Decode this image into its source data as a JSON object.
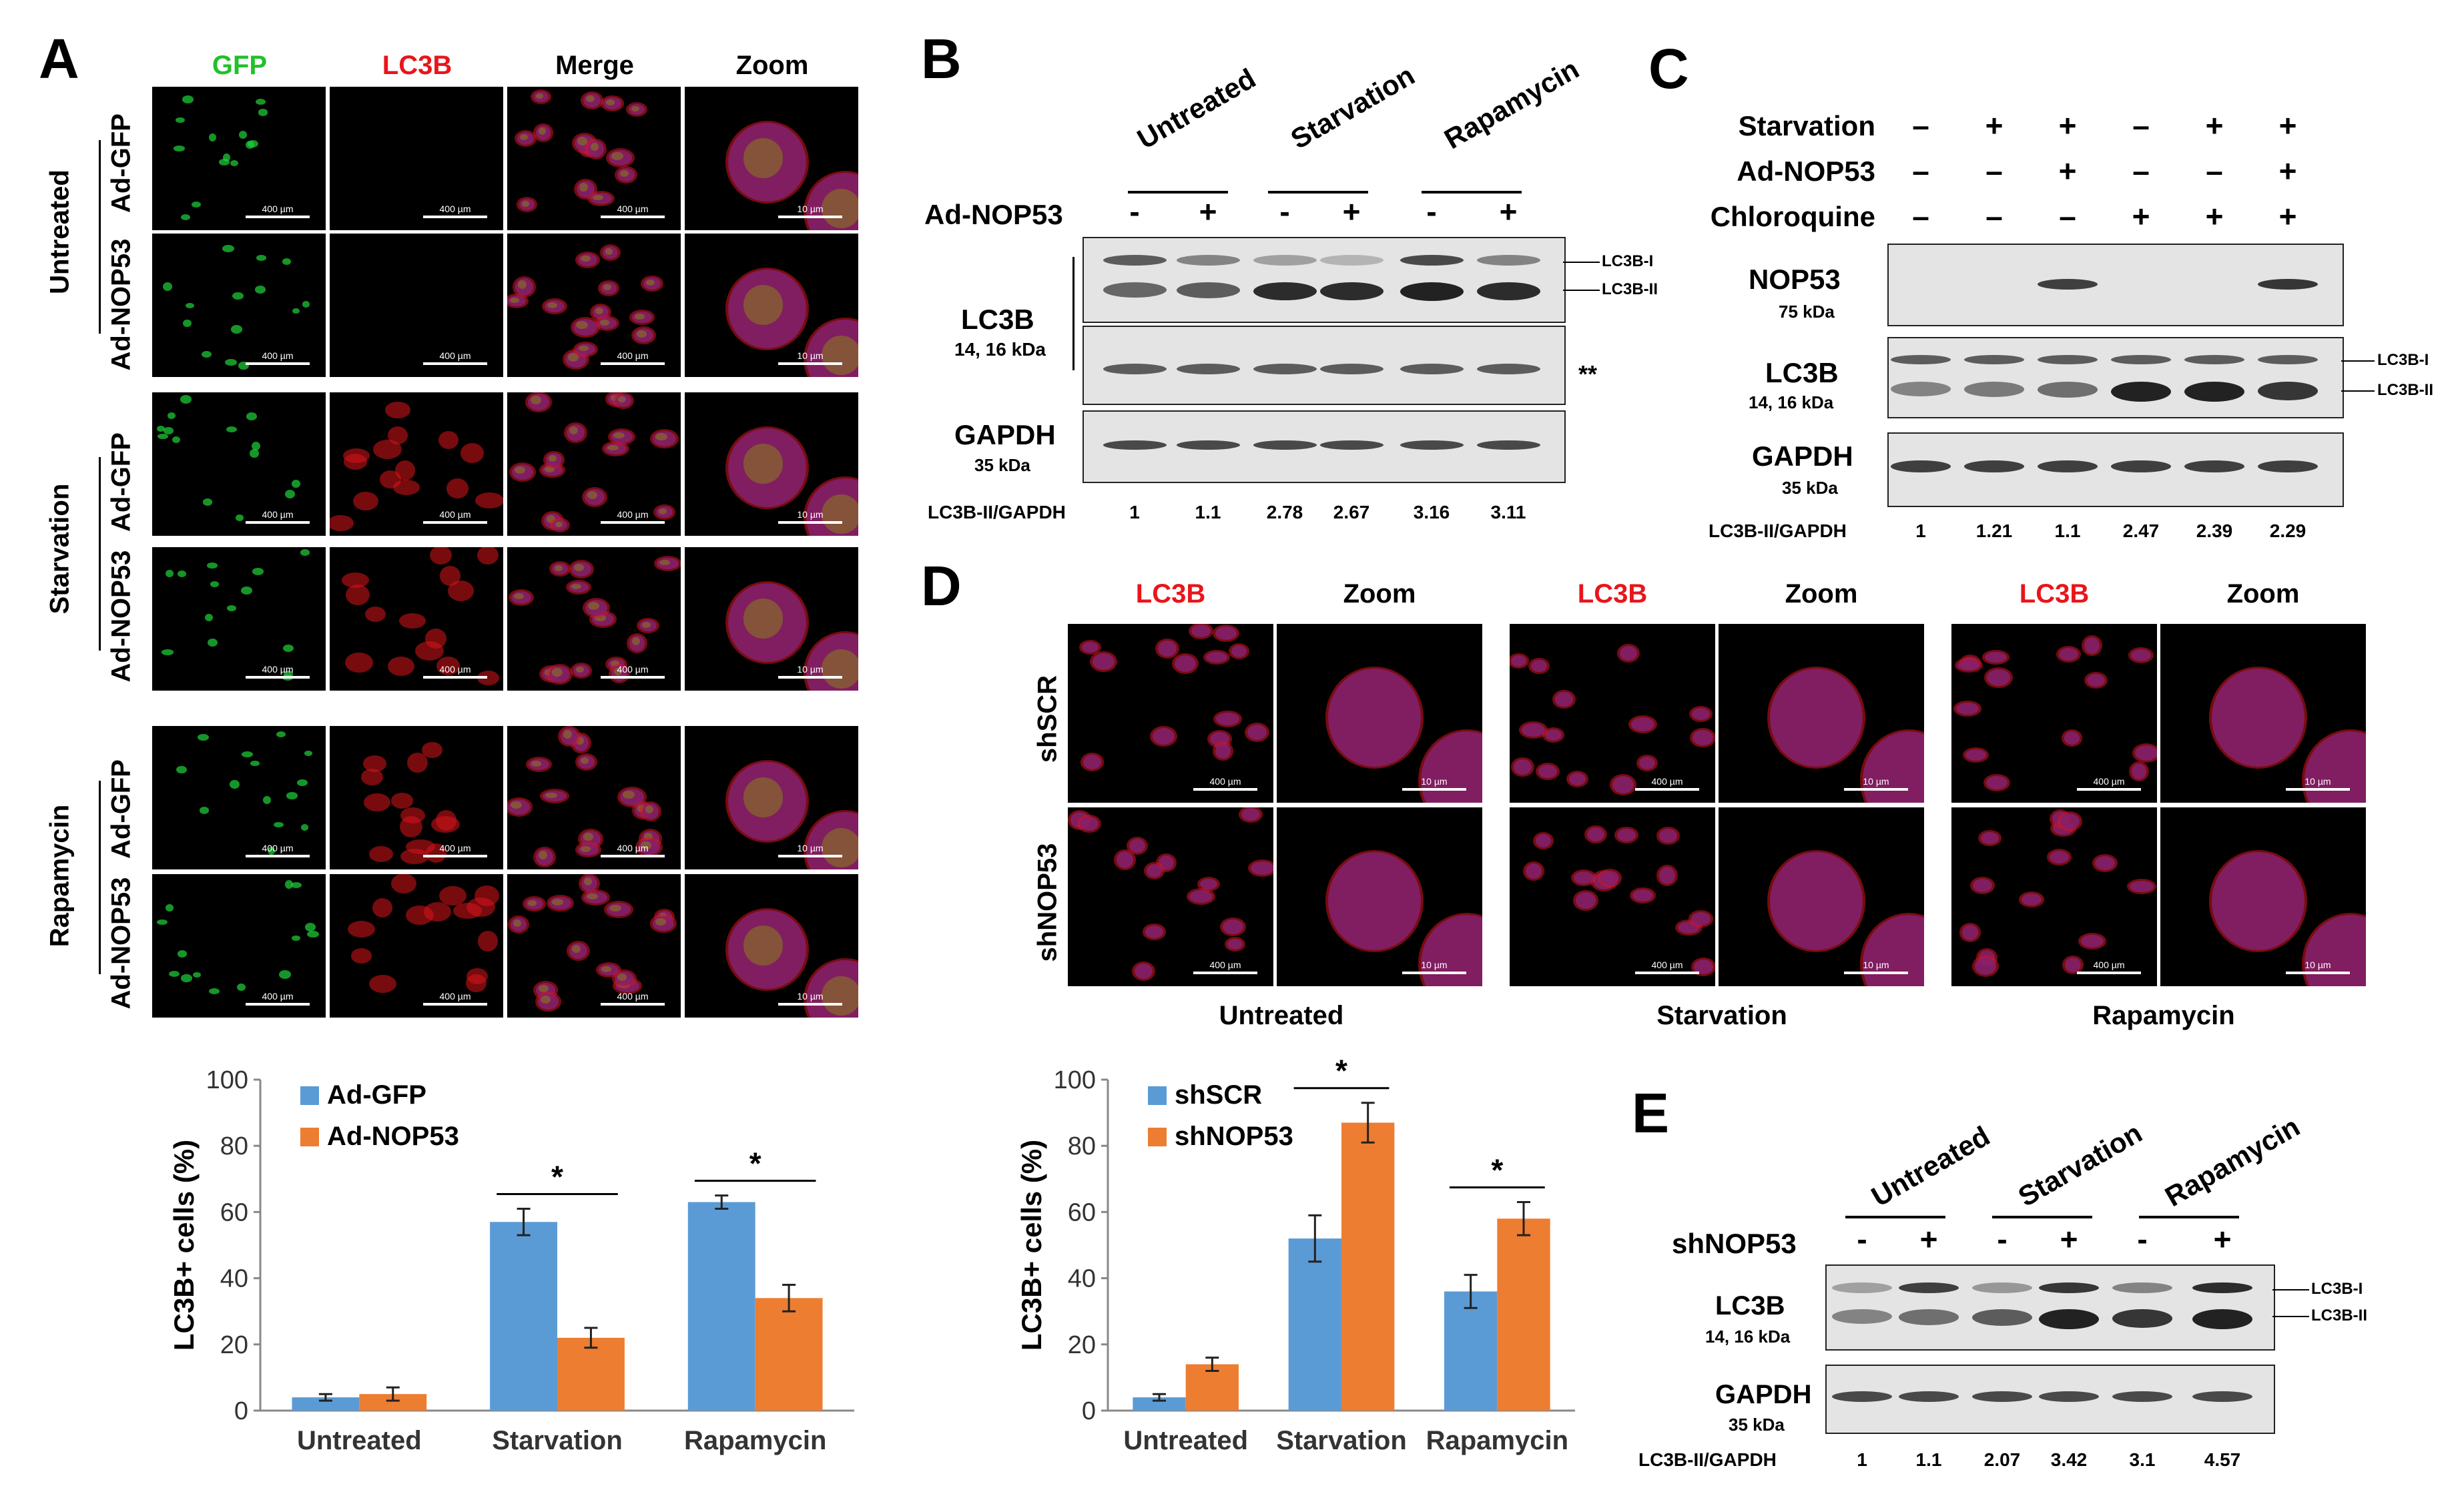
{
  "panel_letters": {
    "A": "A",
    "B": "B",
    "C": "C",
    "D": "D",
    "E": "E"
  },
  "panelA": {
    "columns": [
      "GFP",
      "LC3B",
      "Merge",
      "Zoom"
    ],
    "column_colors": [
      "#22c02a",
      "#e8151b",
      "#000000",
      "#000000"
    ],
    "groups": [
      "Untreated",
      "Starvation",
      "Rapamycin"
    ],
    "rows": [
      "Ad-GFP",
      "Ad-NOP53"
    ],
    "scale_large": "400 µm",
    "scale_small": "10 µm"
  },
  "panelB": {
    "lanes_header": [
      "Untreated",
      "Starvation",
      "Rapamycin"
    ],
    "treatment_label": "Ad-NOP53",
    "signs": [
      "-",
      "+",
      "-",
      "+",
      "-",
      "+"
    ],
    "lc3b_label": "LC3B",
    "lc3b_kda": "14, 16 kDa",
    "gapdh_label": "GAPDH",
    "gapdh_kda": "35 kDa",
    "band_I": "LC3B-I",
    "band_II": "LC3B-II",
    "asterisks": "**",
    "ratio_label": "LC3B-II/GAPDH",
    "ratios": [
      "1",
      "1.1",
      "2.78",
      "2.67",
      "3.16",
      "3.11"
    ]
  },
  "panelC": {
    "conditions": [
      {
        "label": "Starvation",
        "signs": [
          "–",
          "+",
          "+",
          "–",
          "+",
          "+"
        ]
      },
      {
        "label": "Ad-NOP53",
        "signs": [
          "–",
          "–",
          "+",
          "–",
          "–",
          "+"
        ]
      },
      {
        "label": "Chloroquine",
        "signs": [
          "–",
          "–",
          "–",
          "+",
          "+",
          "+"
        ]
      }
    ],
    "nop53_label": "NOP53",
    "nop53_kda": "75 kDa",
    "lc3b_label": "LC3B",
    "lc3b_kda": "14, 16 kDa",
    "gapdh_label": "GAPDH",
    "gapdh_kda": "35 kDa",
    "band_I": "LC3B-I",
    "band_II": "LC3B-II",
    "ratio_label": "LC3B-II/GAPDH",
    "ratios": [
      "1",
      "1.21",
      "1.1",
      "2.47",
      "2.39",
      "2.29"
    ]
  },
  "panelD": {
    "col_headers": [
      "LC3B",
      "Zoom",
      "LC3B",
      "Zoom",
      "LC3B",
      "Zoom"
    ],
    "rows": [
      "shSCR",
      "shNOP53"
    ],
    "groups": [
      "Untreated",
      "Starvation",
      "Rapamycin"
    ],
    "scale_large": "400 µm",
    "scale_small": "10 µm"
  },
  "panelE": {
    "lanes_header": [
      "Untreated",
      "Starvation",
      "Rapamycin"
    ],
    "treatment_label": "shNOP53",
    "signs": [
      "-",
      "+",
      "-",
      "+",
      "-",
      "+"
    ],
    "lc3b_label": "LC3B",
    "lc3b_kda": "14, 16 kDa",
    "gapdh_label": "GAPDH",
    "gapdh_kda": "35 kDa",
    "band_I": "LC3B-I",
    "band_II": "LC3B-II",
    "ratio_label": "LC3B-II/GAPDH",
    "ratios": [
      "1",
      "1.1",
      "2.07",
      "3.42",
      "3.1",
      "4.57"
    ]
  },
  "colors": {
    "series1": "#5b9bd5",
    "series2": "#ed7d31",
    "red_label": "#e8151b",
    "green_label": "#22c02a"
  },
  "chart_data": [
    {
      "type": "bar",
      "categories": [
        "Untreated",
        "Starvation",
        "Rapamycin"
      ],
      "series": [
        {
          "name": "Ad-GFP",
          "values": [
            4,
            57,
            63
          ],
          "errors": [
            1,
            4,
            2
          ]
        },
        {
          "name": "Ad-NOP53",
          "values": [
            5,
            22,
            34
          ],
          "errors": [
            2,
            3,
            4
          ]
        }
      ],
      "ylabel": "LC3B+ cells (%)",
      "ylim": [
        0,
        100
      ],
      "yticks": [
        0,
        20,
        40,
        60,
        80,
        100
      ],
      "significance": [
        {
          "category": "Starvation",
          "label": "*"
        },
        {
          "category": "Rapamycin",
          "label": "*"
        }
      ],
      "legend": "top-left",
      "grid": false
    },
    {
      "type": "bar",
      "categories": [
        "Untreated",
        "Starvation",
        "Rapamycin"
      ],
      "series": [
        {
          "name": "shSCR",
          "values": [
            4,
            52,
            36
          ],
          "errors": [
            1,
            7,
            5
          ]
        },
        {
          "name": "shNOP53",
          "values": [
            14,
            87,
            58
          ],
          "errors": [
            2,
            6,
            5
          ]
        }
      ],
      "ylabel": "LC3B+ cells (%)",
      "ylim": [
        0,
        100
      ],
      "yticks": [
        0,
        20,
        40,
        60,
        80,
        100
      ],
      "significance": [
        {
          "category": "Starvation",
          "label": "*"
        },
        {
          "category": "Rapamycin",
          "label": "*"
        }
      ],
      "legend": "top-left",
      "grid": false
    }
  ]
}
